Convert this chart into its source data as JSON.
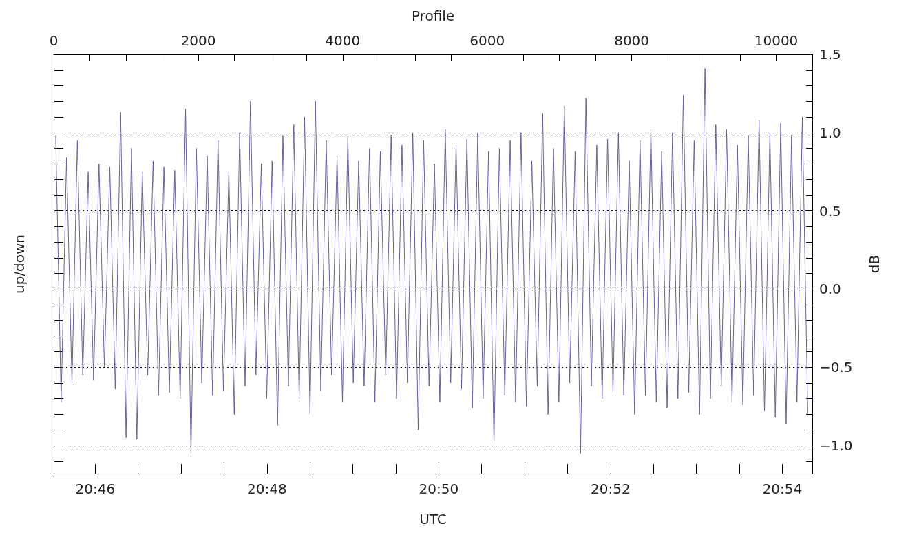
{
  "chart_data": {
    "type": "line",
    "xlabel": "UTC",
    "x2label": "Profile",
    "ylabel": "up/down",
    "y2label": "dB",
    "grid": "y",
    "marker": "none",
    "line_style": "solid",
    "xlim": [
      20.75861,
      20.90583
    ],
    "xticks": [
      {
        "value": 20.766667,
        "label": "20:46"
      },
      {
        "value": 20.775,
        "label": null
      },
      {
        "value": 20.783333,
        "label": null
      },
      {
        "value": 20.791667,
        "label": null
      },
      {
        "value": 20.8,
        "label": "20:48"
      },
      {
        "value": 20.808333,
        "label": null
      },
      {
        "value": 20.816667,
        "label": null
      },
      {
        "value": 20.825,
        "label": null
      },
      {
        "value": 20.833333,
        "label": "20:50"
      },
      {
        "value": 20.841667,
        "label": null
      },
      {
        "value": 20.85,
        "label": null
      },
      {
        "value": 20.858333,
        "label": null
      },
      {
        "value": 20.866667,
        "label": "20:52"
      },
      {
        "value": 20.875,
        "label": null
      },
      {
        "value": 20.883333,
        "label": null
      },
      {
        "value": 20.891667,
        "label": null
      },
      {
        "value": 20.9,
        "label": "20:54"
      }
    ],
    "x2lim": [
      0,
      10500
    ],
    "x2ticks": [
      0,
      {
        "value": 500,
        "label": null
      },
      {
        "value": 1000,
        "label": null
      },
      {
        "value": 1500,
        "label": null
      },
      2000,
      {
        "value": 2500,
        "label": null
      },
      {
        "value": 3000,
        "label": null
      },
      {
        "value": 3500,
        "label": null
      },
      4000,
      {
        "value": 4500,
        "label": null
      },
      {
        "value": 5000,
        "label": null
      },
      {
        "value": 5500,
        "label": null
      },
      6000,
      {
        "value": 6500,
        "label": null
      },
      {
        "value": 7000,
        "label": null
      },
      {
        "value": 7500,
        "label": null
      },
      8000,
      {
        "value": 8500,
        "label": null
      },
      {
        "value": 9000,
        "label": null
      },
      {
        "value": 9500,
        "label": null
      },
      10000
    ],
    "y2lim": [
      -1.18,
      1.5
    ],
    "y2ticks": [
      {
        "value": -1.1,
        "label": null
      },
      {
        "value": -1,
        "label": "−1.0"
      },
      {
        "value": -0.9,
        "label": null
      },
      {
        "value": -0.8,
        "label": null
      },
      {
        "value": -0.7,
        "label": null
      },
      {
        "value": -0.6,
        "label": null
      },
      {
        "value": -0.5,
        "label": "−0.5"
      },
      {
        "value": -0.4,
        "label": null
      },
      {
        "value": -0.3,
        "label": null
      },
      {
        "value": -0.2,
        "label": null
      },
      {
        "value": -0.1,
        "label": null
      },
      {
        "value": 0,
        "label": "0.0"
      },
      {
        "value": 0.1,
        "label": null
      },
      {
        "value": 0.2,
        "label": null
      },
      {
        "value": 0.3,
        "label": null
      },
      {
        "value": 0.4,
        "label": null
      },
      {
        "value": 0.5,
        "label": "0.5"
      },
      {
        "value": 0.6,
        "label": null
      },
      {
        "value": 0.7,
        "label": null
      },
      {
        "value": 0.8,
        "label": null
      },
      {
        "value": 0.9,
        "label": null
      },
      {
        "value": 1,
        "label": "1.0"
      },
      {
        "value": 1.1,
        "label": null
      },
      {
        "value": 1.2,
        "label": null
      },
      {
        "value": 1.3,
        "label": null
      },
      {
        "value": 1.4,
        "label": null
      },
      {
        "value": 1.5,
        "label": "1.5"
      }
    ],
    "series": [
      {
        "color": "#62629a",
        "axis": "y2",
        "x": [
          20.759,
          20.76005,
          20.7611,
          20.76215,
          20.7632,
          20.76425,
          20.7653,
          20.76635,
          20.7674,
          20.76845,
          20.7695,
          20.77055,
          20.7716,
          20.77265,
          20.7737,
          20.77475,
          20.7758,
          20.77685,
          20.7779,
          20.77895,
          20.78,
          20.78105,
          20.7821,
          20.78315,
          20.7842,
          20.78525,
          20.7863,
          20.78735,
          20.7884,
          20.78945,
          20.7905,
          20.79155,
          20.7926,
          20.79365,
          20.7947,
          20.79575,
          20.7968,
          20.79785,
          20.7989,
          20.79995,
          20.801,
          20.80205,
          20.8031,
          20.80415,
          20.8052,
          20.80625,
          20.8073,
          20.80835,
          20.8094,
          20.81045,
          20.8115,
          20.81255,
          20.8136,
          20.81465,
          20.8157,
          20.81675,
          20.8178,
          20.81885,
          20.8199,
          20.82095,
          20.822,
          20.82305,
          20.8241,
          20.82515,
          20.8262,
          20.82725,
          20.8283,
          20.82935,
          20.8304,
          20.83145,
          20.8325,
          20.83355,
          20.8346,
          20.83565,
          20.8367,
          20.83775,
          20.8388,
          20.83985,
          20.8409,
          20.84195,
          20.843,
          20.84405,
          20.8451,
          20.84615,
          20.8472,
          20.84825,
          20.8493,
          20.85035,
          20.8514,
          20.85245,
          20.8535,
          20.85455,
          20.8556,
          20.85665,
          20.8577,
          20.85875,
          20.8598,
          20.86085,
          20.8619,
          20.86295,
          20.864,
          20.86505,
          20.8661,
          20.86715,
          20.8682,
          20.86925,
          20.8703,
          20.87135,
          20.8724,
          20.87345,
          20.8745,
          20.87555,
          20.8766,
          20.87765,
          20.8787,
          20.87975,
          20.8808,
          20.88185,
          20.8829,
          20.88395,
          20.885,
          20.88605,
          20.8871,
          20.88815,
          20.8892,
          20.89025,
          20.8913,
          20.89235,
          20.8934,
          20.89445,
          20.8955,
          20.89655,
          20.8976,
          20.89865,
          20.8997,
          20.90075,
          20.9018,
          20.90285,
          20.9039,
          20.90495
        ],
        "values": [
          0.98,
          -0.72,
          0.84,
          -0.6,
          0.95,
          -0.55,
          0.75,
          -0.58,
          0.8,
          -0.5,
          0.78,
          -0.64,
          1.13,
          -0.95,
          0.9,
          -0.96,
          0.75,
          -0.55,
          0.82,
          -0.68,
          0.78,
          -0.66,
          0.76,
          -0.7,
          1.15,
          -1.05,
          0.9,
          -0.6,
          0.85,
          -0.68,
          0.95,
          -0.65,
          0.75,
          -0.8,
          1.0,
          -0.62,
          1.2,
          -0.55,
          0.8,
          -0.7,
          0.82,
          -0.87,
          0.98,
          -0.62,
          1.05,
          -0.7,
          1.1,
          -0.8,
          1.2,
          -0.65,
          0.95,
          -0.55,
          0.85,
          -0.72,
          0.97,
          -0.6,
          0.82,
          -0.62,
          0.9,
          -0.72,
          0.88,
          -0.55,
          0.98,
          -0.7,
          0.92,
          -0.6,
          1.0,
          -0.9,
          0.95,
          -0.62,
          0.8,
          -0.72,
          1.02,
          -0.6,
          0.92,
          -0.64,
          0.96,
          -0.76,
          1.0,
          -0.7,
          0.88,
          -0.99,
          0.9,
          -0.68,
          0.95,
          -0.72,
          1.0,
          -0.75,
          0.82,
          -0.62,
          1.12,
          -0.8,
          0.9,
          -0.72,
          1.17,
          -0.6,
          0.88,
          -1.05,
          1.22,
          -0.62,
          0.92,
          -0.7,
          0.96,
          -0.66,
          1.0,
          -0.68,
          0.82,
          -0.8,
          0.95,
          -0.68,
          1.02,
          -0.72,
          0.88,
          -0.76,
          1.0,
          -0.7,
          1.24,
          -0.66,
          0.95,
          -0.8,
          1.41,
          -0.7,
          1.05,
          -0.62,
          1.02,
          -0.72,
          0.92,
          -0.74,
          0.98,
          -0.68,
          1.08,
          -0.78,
          1.0,
          -0.82,
          1.06,
          -0.86,
          0.98,
          -0.72,
          1.1,
          -0.8
        ]
      }
    ]
  }
}
